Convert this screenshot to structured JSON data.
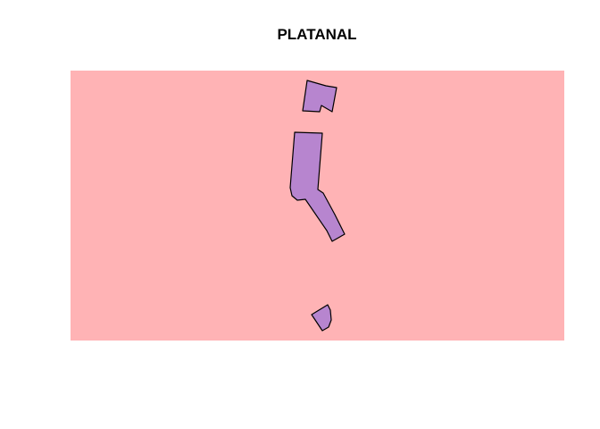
{
  "title": "PLATANAL",
  "colors": {
    "background_region": "#ffb3b5",
    "parcel_fill": "#b785cf",
    "parcel_stroke": "#000000"
  }
}
